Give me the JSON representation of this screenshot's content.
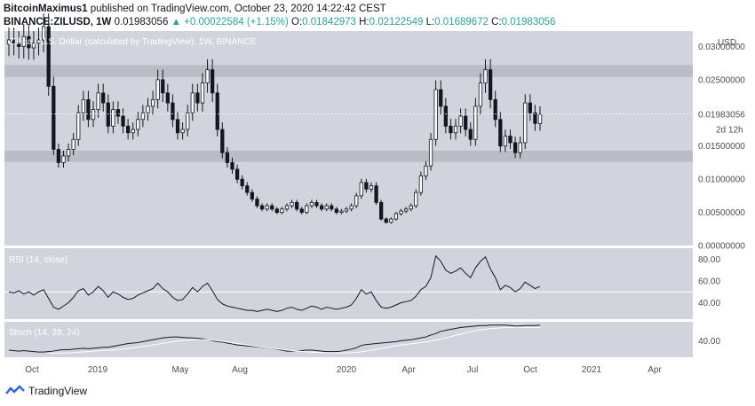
{
  "header": {
    "author": "BitcoinMaximus1",
    "published_text": "published on TradingView.com, October 23, 2020 14:22:42 CEST",
    "symbol": "BINANCE:ZILUSD, 1W",
    "last": "0.01983056",
    "change": "+0.00022584 (+1.15%)",
    "open_label": "O:",
    "open": "0.01842973",
    "high_label": "H:",
    "high": "0.02122549",
    "low_label": "L:",
    "low": "0.01689672",
    "close_label": "C:",
    "close": "0.01983056"
  },
  "main_pane": {
    "legend": "Zilliqa / U.S. Dollar (calculated by TradingView), 1W, BINANCE",
    "currency": "USD",
    "price_ticks": [
      "0.03000000",
      "0.02500000",
      "0.02000000",
      "0.01500000",
      "0.01000000",
      "0.00500000",
      "0.00000000"
    ],
    "last_price_label": "0.01983056",
    "countdown_label": "2d 12h"
  },
  "rsi_pane": {
    "legend": "RSI (14, close)",
    "ticks": [
      "80.00",
      "60.00",
      "40.00"
    ]
  },
  "stoch_pane": {
    "legend": "Stoch (14, 28, 24)",
    "ticks": [
      "40.00"
    ]
  },
  "time_axis": [
    "Oct",
    "2019",
    "May",
    "Aug",
    "2020",
    "Apr",
    "Jul",
    "Oct",
    "2021",
    "Apr"
  ],
  "footer": {
    "brand": "TradingView"
  },
  "colors": {
    "up": "#ffffff",
    "down": "#131722",
    "pane_bg": "#d1d4dc",
    "zone": "#b2b5be"
  },
  "chart_data": {
    "type": "candlestick",
    "interval": "1W",
    "ylim": [
      0,
      0.031
    ],
    "resistance_zone": [
      0.0254,
      0.0272
    ],
    "support_zone": [
      0.0126,
      0.0143
    ],
    "closes": [
      0.031,
      0.0305,
      0.03,
      0.0315,
      0.0298,
      0.0305,
      0.031,
      0.033,
      0.024,
      0.0145,
      0.0125,
      0.0135,
      0.0145,
      0.016,
      0.02,
      0.022,
      0.019,
      0.0205,
      0.023,
      0.0215,
      0.018,
      0.0205,
      0.0195,
      0.018,
      0.017,
      0.0175,
      0.019,
      0.02,
      0.021,
      0.022,
      0.025,
      0.023,
      0.0215,
      0.019,
      0.017,
      0.0175,
      0.02,
      0.023,
      0.0215,
      0.0245,
      0.0265,
      0.023,
      0.0175,
      0.014,
      0.0125,
      0.0115,
      0.01,
      0.009,
      0.008,
      0.007,
      0.006,
      0.0055,
      0.006,
      0.0055,
      0.005,
      0.0055,
      0.006,
      0.0065,
      0.0055,
      0.005,
      0.006,
      0.0065,
      0.006,
      0.0055,
      0.006,
      0.0055,
      0.005,
      0.0052,
      0.0055,
      0.006,
      0.0075,
      0.0095,
      0.0085,
      0.009,
      0.0065,
      0.004,
      0.0035,
      0.004,
      0.0048,
      0.0052,
      0.0055,
      0.006,
      0.008,
      0.0105,
      0.012,
      0.016,
      0.0235,
      0.021,
      0.018,
      0.017,
      0.018,
      0.0195,
      0.0175,
      0.016,
      0.021,
      0.0245,
      0.0265,
      0.022,
      0.019,
      0.015,
      0.0165,
      0.0155,
      0.014,
      0.0155,
      0.0215,
      0.02,
      0.0184,
      0.0198
    ],
    "rsi": [
      50,
      49,
      51,
      48,
      50,
      47,
      50,
      52,
      44,
      36,
      34,
      37,
      40,
      45,
      51,
      53,
      47,
      50,
      55,
      51,
      45,
      50,
      48,
      45,
      43,
      44,
      47,
      49,
      51,
      53,
      58,
      53,
      50,
      45,
      42,
      43,
      48,
      54,
      50,
      55,
      58,
      51,
      43,
      39,
      37,
      36,
      35,
      34,
      33,
      33,
      32,
      33,
      34,
      33,
      32,
      33,
      35,
      36,
      34,
      33,
      35,
      37,
      36,
      34,
      36,
      35,
      34,
      35,
      36,
      38,
      44,
      52,
      48,
      50,
      42,
      36,
      35,
      36,
      38,
      40,
      41,
      42,
      46,
      52,
      55,
      63,
      83,
      78,
      70,
      67,
      69,
      72,
      67,
      63,
      72,
      78,
      82,
      71,
      63,
      52,
      56,
      54,
      50,
      53,
      59,
      56,
      53,
      55
    ],
    "stoch_k": [
      20,
      19,
      18,
      19,
      18,
      17,
      16,
      16,
      17,
      18,
      20,
      21,
      21,
      22,
      23,
      24,
      23,
      24,
      25,
      26,
      26,
      28,
      30,
      32,
      34,
      35,
      36,
      38,
      40,
      42,
      44,
      46,
      47,
      48,
      48,
      47,
      46,
      46,
      45,
      44,
      42,
      40,
      38,
      37,
      35,
      33,
      31,
      30,
      29,
      28,
      27,
      26,
      25,
      24,
      22,
      20,
      18,
      18,
      18,
      19,
      20,
      20,
      19,
      18,
      17,
      17,
      17,
      18,
      20,
      22,
      25,
      30,
      32,
      33,
      34,
      35,
      36,
      37,
      38,
      40,
      41,
      42,
      44,
      46,
      48,
      52,
      55,
      60,
      62,
      64,
      66,
      68,
      69,
      70,
      71,
      72,
      72,
      73,
      73,
      73,
      73,
      72,
      71,
      71,
      72,
      72,
      72,
      73
    ],
    "stoch_d": [
      null,
      null,
      null,
      null,
      null,
      null,
      null,
      null,
      null,
      null,
      null,
      null,
      null,
      null,
      null,
      null,
      null,
      null,
      null,
      null,
      null,
      null,
      null,
      null,
      null,
      null,
      null,
      null,
      null,
      null,
      null,
      null,
      null,
      null,
      null,
      null,
      null,
      null,
      null,
      null,
      null,
      null,
      null,
      null,
      null,
      null,
      null,
      null,
      null,
      null,
      null,
      null,
      null,
      null,
      null,
      null,
      null,
      null,
      null,
      null,
      null,
      null,
      null,
      null,
      null,
      null,
      null,
      null,
      null,
      null,
      null,
      null,
      null,
      null,
      null,
      null,
      null,
      null,
      null,
      null,
      null,
      null,
      null,
      null,
      null,
      null,
      null,
      null,
      null,
      null,
      null,
      null,
      null,
      null,
      null,
      null,
      null,
      null,
      null,
      null,
      null,
      null,
      null,
      null,
      null,
      null,
      null,
      null
    ],
    "rsi_ref_level": 50
  }
}
